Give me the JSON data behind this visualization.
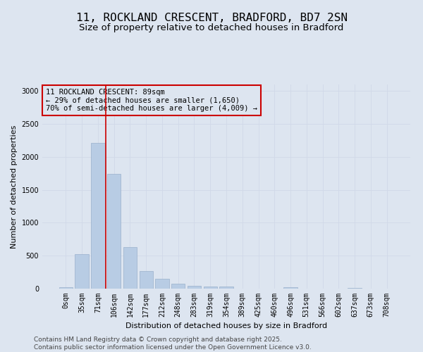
{
  "title_line1": "11, ROCKLAND CRESCENT, BRADFORD, BD7 2SN",
  "title_line2": "Size of property relative to detached houses in Bradford",
  "xlabel": "Distribution of detached houses by size in Bradford",
  "ylabel": "Number of detached properties",
  "categories": [
    "0sqm",
    "35sqm",
    "71sqm",
    "106sqm",
    "142sqm",
    "177sqm",
    "212sqm",
    "248sqm",
    "283sqm",
    "319sqm",
    "354sqm",
    "389sqm",
    "425sqm",
    "460sqm",
    "496sqm",
    "531sqm",
    "566sqm",
    "602sqm",
    "637sqm",
    "673sqm",
    "708sqm"
  ],
  "values": [
    20,
    520,
    2210,
    1740,
    630,
    270,
    150,
    80,
    40,
    35,
    35,
    0,
    0,
    0,
    20,
    0,
    0,
    0,
    15,
    0,
    0
  ],
  "bar_color": "#b8cce4",
  "bar_edge_color": "#9ab0cc",
  "grid_color": "#d0d8e8",
  "bg_color": "#dde5f0",
  "property_line_x": 2.5,
  "annotation_text_line1": "11 ROCKLAND CRESCENT: 89sqm",
  "annotation_text_line2": "← 29% of detached houses are smaller (1,650)",
  "annotation_text_line3": "70% of semi-detached houses are larger (4,009) →",
  "annotation_box_color": "#cc0000",
  "property_line_color": "#cc0000",
  "ylim": [
    0,
    3100
  ],
  "yticks": [
    0,
    500,
    1000,
    1500,
    2000,
    2500,
    3000
  ],
  "footer_line1": "Contains HM Land Registry data © Crown copyright and database right 2025.",
  "footer_line2": "Contains public sector information licensed under the Open Government Licence v3.0.",
  "title_fontsize": 11.5,
  "subtitle_fontsize": 9.5,
  "axis_label_fontsize": 8,
  "tick_fontsize": 7,
  "annotation_fontsize": 7.5,
  "footer_fontsize": 6.5
}
